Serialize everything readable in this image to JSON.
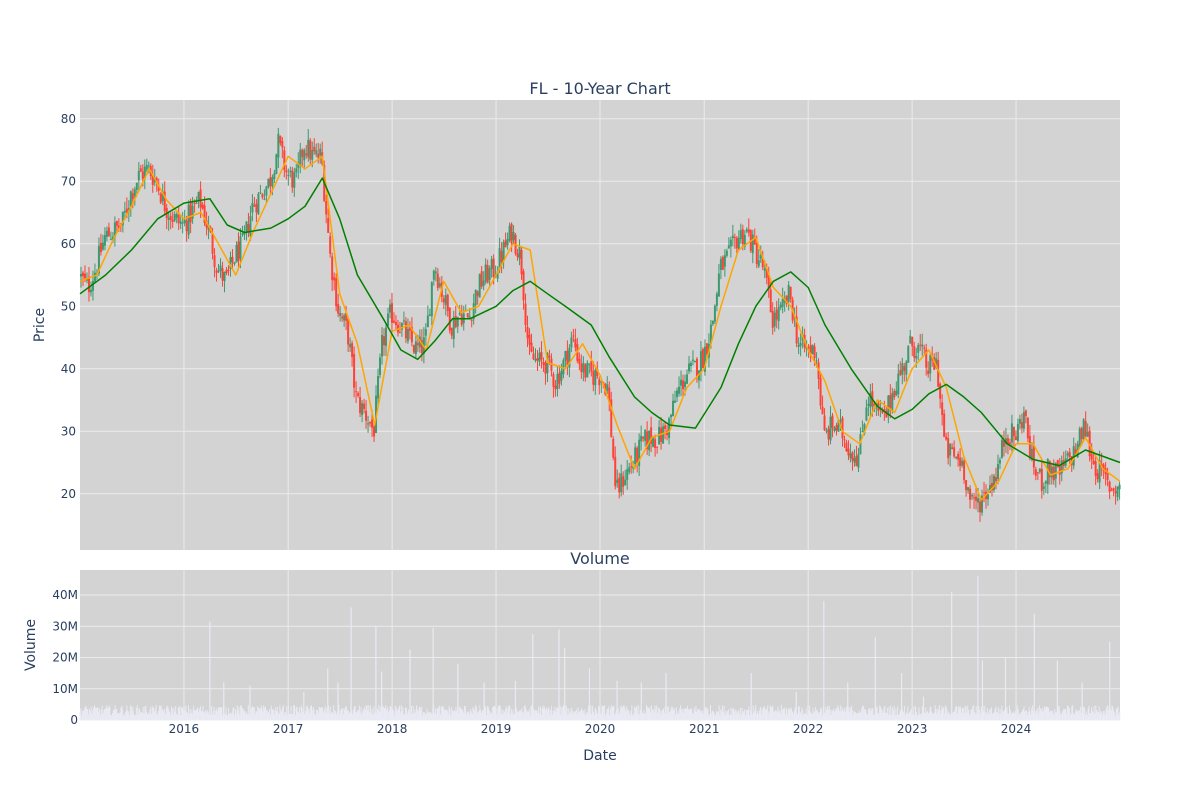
{
  "chart_data": [
    {
      "type": "candlestick",
      "title": "FL - 10-Year Chart",
      "ylabel": "Price",
      "x_range": [
        "2015-01-01",
        "2024-12-31"
      ],
      "ylim": [
        11,
        83
      ],
      "yticks": [
        20,
        30,
        40,
        50,
        60,
        70,
        80
      ],
      "grid": true,
      "legend": "none",
      "colors": {
        "plot_bg": "#d3d3d3",
        "grid": "#ebebeb",
        "up": "#3d9970",
        "down": "#ff4136",
        "ma_short": "#ffa500",
        "ma_long": "#008000",
        "text": "#2a3f5f"
      },
      "price_path": [
        [
          "2015-01-01",
          55
        ],
        [
          "2015-02-01",
          53
        ],
        [
          "2015-03-01",
          56
        ],
        [
          "2015-04-01",
          61
        ],
        [
          "2015-05-01",
          62
        ],
        [
          "2015-06-01",
          63
        ],
        [
          "2015-07-01",
          68
        ],
        [
          "2015-08-01",
          71
        ],
        [
          "2015-09-01",
          72
        ],
        [
          "2015-10-01",
          70
        ],
        [
          "2015-11-01",
          66
        ],
        [
          "2015-12-01",
          64
        ],
        [
          "2016-01-01",
          63
        ],
        [
          "2016-02-01",
          65
        ],
        [
          "2016-03-01",
          67
        ],
        [
          "2016-04-01",
          62
        ],
        [
          "2016-05-01",
          56
        ],
        [
          "2016-06-01",
          54
        ],
        [
          "2016-07-01",
          58
        ],
        [
          "2016-08-01",
          60
        ],
        [
          "2016-09-01",
          66
        ],
        [
          "2016-10-01",
          68
        ],
        [
          "2016-11-01",
          70
        ],
        [
          "2016-12-01",
          76
        ],
        [
          "2017-01-01",
          71
        ],
        [
          "2017-02-01",
          70
        ],
        [
          "2017-03-01",
          76
        ],
        [
          "2017-04-01",
          74
        ],
        [
          "2017-05-01",
          74
        ],
        [
          "2017-06-01",
          58
        ],
        [
          "2017-07-01",
          49
        ],
        [
          "2017-08-01",
          46
        ],
        [
          "2017-09-01",
          35
        ],
        [
          "2017-10-01",
          33
        ],
        [
          "2017-11-01",
          30
        ],
        [
          "2017-12-01",
          44
        ],
        [
          "2018-01-01",
          49
        ],
        [
          "2018-02-01",
          47
        ],
        [
          "2018-03-01",
          45
        ],
        [
          "2018-04-01",
          43
        ],
        [
          "2018-05-01",
          44
        ],
        [
          "2018-06-01",
          57
        ],
        [
          "2018-07-01",
          52
        ],
        [
          "2018-08-01",
          47
        ],
        [
          "2018-09-01",
          49
        ],
        [
          "2018-10-01",
          48
        ],
        [
          "2018-11-01",
          53
        ],
        [
          "2018-12-01",
          55
        ],
        [
          "2019-01-01",
          56
        ],
        [
          "2019-02-01",
          59
        ],
        [
          "2019-03-01",
          62
        ],
        [
          "2019-04-01",
          58
        ],
        [
          "2019-05-01",
          42
        ],
        [
          "2019-06-01",
          41
        ],
        [
          "2019-07-01",
          41
        ],
        [
          "2019-08-01",
          38
        ],
        [
          "2019-09-01",
          41
        ],
        [
          "2019-10-01",
          45
        ],
        [
          "2019-11-01",
          40
        ],
        [
          "2019-12-01",
          39
        ],
        [
          "2020-01-01",
          39
        ],
        [
          "2020-02-01",
          37
        ],
        [
          "2020-03-01",
          20
        ],
        [
          "2020-04-01",
          23
        ],
        [
          "2020-05-01",
          25
        ],
        [
          "2020-06-01",
          28
        ],
        [
          "2020-07-01",
          29
        ],
        [
          "2020-08-01",
          29
        ],
        [
          "2020-09-01",
          31
        ],
        [
          "2020-10-01",
          36
        ],
        [
          "2020-11-01",
          39
        ],
        [
          "2020-12-01",
          40
        ],
        [
          "2021-01-01",
          42
        ],
        [
          "2021-02-01",
          47
        ],
        [
          "2021-03-01",
          56
        ],
        [
          "2021-04-01",
          58
        ],
        [
          "2021-05-01",
          61
        ],
        [
          "2021-06-01",
          62
        ],
        [
          "2021-07-01",
          59
        ],
        [
          "2021-08-01",
          56
        ],
        [
          "2021-09-01",
          48
        ],
        [
          "2021-10-01",
          49
        ],
        [
          "2021-11-01",
          52
        ],
        [
          "2021-12-01",
          44
        ],
        [
          "2022-01-01",
          43
        ],
        [
          "2022-02-01",
          43
        ],
        [
          "2022-03-01",
          29
        ],
        [
          "2022-04-01",
          31
        ],
        [
          "2022-05-01",
          30
        ],
        [
          "2022-06-01",
          27
        ],
        [
          "2022-07-01",
          26
        ],
        [
          "2022-08-01",
          36
        ],
        [
          "2022-09-01",
          33
        ],
        [
          "2022-10-01",
          32
        ],
        [
          "2022-11-01",
          37
        ],
        [
          "2022-12-01",
          40
        ],
        [
          "2023-01-01",
          44
        ],
        [
          "2023-02-01",
          43
        ],
        [
          "2023-03-01",
          40
        ],
        [
          "2023-04-01",
          41
        ],
        [
          "2023-05-01",
          27
        ],
        [
          "2023-06-01",
          26
        ],
        [
          "2023-07-01",
          25
        ],
        [
          "2023-08-01",
          18
        ],
        [
          "2023-09-01",
          19
        ],
        [
          "2023-10-01",
          21
        ],
        [
          "2023-11-01",
          24
        ],
        [
          "2023-12-01",
          30
        ],
        [
          "2024-01-01",
          29
        ],
        [
          "2024-02-01",
          33
        ],
        [
          "2024-03-01",
          25
        ],
        [
          "2024-04-01",
          22
        ],
        [
          "2024-05-01",
          24
        ],
        [
          "2024-06-01",
          23
        ],
        [
          "2024-07-01",
          25
        ],
        [
          "2024-08-01",
          27
        ],
        [
          "2024-09-01",
          31
        ],
        [
          "2024-10-01",
          25
        ],
        [
          "2024-11-01",
          23
        ],
        [
          "2024-12-01",
          21
        ]
      ],
      "series": [
        {
          "color": "#ffa500",
          "points": [
            [
              "2015-01-01",
              54
            ],
            [
              "2015-03-01",
              55
            ],
            [
              "2015-05-01",
              61
            ],
            [
              "2015-07-01",
              66
            ],
            [
              "2015-09-01",
              72
            ],
            [
              "2015-11-01",
              67
            ],
            [
              "2016-01-01",
              64
            ],
            [
              "2016-03-01",
              65
            ],
            [
              "2016-05-01",
              60
            ],
            [
              "2016-07-01",
              55
            ],
            [
              "2016-09-01",
              62
            ],
            [
              "2016-11-01",
              68
            ],
            [
              "2017-01-01",
              74
            ],
            [
              "2017-03-01",
              72
            ],
            [
              "2017-05-01",
              74
            ],
            [
              "2017-07-01",
              52
            ],
            [
              "2017-09-01",
              44
            ],
            [
              "2017-11-01",
              31
            ],
            [
              "2018-01-01",
              46
            ],
            [
              "2018-03-01",
              47
            ],
            [
              "2018-05-01",
              43
            ],
            [
              "2018-07-01",
              54
            ],
            [
              "2018-09-01",
              49
            ],
            [
              "2018-11-01",
              50
            ],
            [
              "2019-01-01",
              55
            ],
            [
              "2019-03-01",
              60
            ],
            [
              "2019-05-01",
              59
            ],
            [
              "2019-07-01",
              41
            ],
            [
              "2019-09-01",
              40
            ],
            [
              "2019-11-01",
              44
            ],
            [
              "2020-01-01",
              39
            ],
            [
              "2020-03-01",
              31
            ],
            [
              "2020-05-01",
              24
            ],
            [
              "2020-07-01",
              29
            ],
            [
              "2020-09-01",
              30
            ],
            [
              "2020-11-01",
              37
            ],
            [
              "2021-01-01",
              40
            ],
            [
              "2021-03-01",
              50
            ],
            [
              "2021-05-01",
              59
            ],
            [
              "2021-07-01",
              61
            ],
            [
              "2021-09-01",
              53
            ],
            [
              "2021-11-01",
              50
            ],
            [
              "2022-01-01",
              43
            ],
            [
              "2022-03-01",
              38
            ],
            [
              "2022-05-01",
              30
            ],
            [
              "2022-07-01",
              28
            ],
            [
              "2022-09-01",
              35
            ],
            [
              "2022-11-01",
              33
            ],
            [
              "2023-01-01",
              40
            ],
            [
              "2023-03-01",
              43
            ],
            [
              "2023-05-01",
              37
            ],
            [
              "2023-07-01",
              26
            ],
            [
              "2023-09-01",
              19
            ],
            [
              "2023-11-01",
              22
            ],
            [
              "2024-01-01",
              28
            ],
            [
              "2024-03-01",
              28
            ],
            [
              "2024-05-01",
              23
            ],
            [
              "2024-07-01",
              24
            ],
            [
              "2024-09-01",
              29
            ],
            [
              "2024-11-01",
              24
            ],
            [
              "2024-12-31",
              22
            ]
          ]
        },
        {
          "color": "#008000",
          "points": [
            [
              "2015-01-01",
              52
            ],
            [
              "2015-04-01",
              55
            ],
            [
              "2015-07-01",
              59
            ],
            [
              "2015-10-01",
              64
            ],
            [
              "2016-01-01",
              66.5
            ],
            [
              "2016-04-01",
              67.2
            ],
            [
              "2016-06-01",
              63
            ],
            [
              "2016-08-01",
              61.8
            ],
            [
              "2016-11-01",
              62.5
            ],
            [
              "2017-01-01",
              64
            ],
            [
              "2017-03-01",
              66
            ],
            [
              "2017-05-01",
              70.5
            ],
            [
              "2017-07-01",
              64
            ],
            [
              "2017-09-01",
              55
            ],
            [
              "2017-12-01",
              48
            ],
            [
              "2018-02-01",
              43
            ],
            [
              "2018-04-01",
              41.5
            ],
            [
              "2018-06-01",
              44.5
            ],
            [
              "2018-08-01",
              48
            ],
            [
              "2018-10-01",
              48
            ],
            [
              "2019-01-01",
              50
            ],
            [
              "2019-03-01",
              52.5
            ],
            [
              "2019-05-01",
              54
            ],
            [
              "2019-07-01",
              52
            ],
            [
              "2019-09-01",
              50
            ],
            [
              "2019-12-01",
              47
            ],
            [
              "2020-02-01",
              42
            ],
            [
              "2020-05-01",
              35.5
            ],
            [
              "2020-07-01",
              33
            ],
            [
              "2020-09-01",
              31
            ],
            [
              "2020-12-01",
              30.5
            ],
            [
              "2021-03-01",
              37
            ],
            [
              "2021-05-01",
              44
            ],
            [
              "2021-07-01",
              50
            ],
            [
              "2021-09-01",
              54
            ],
            [
              "2021-11-01",
              55.5
            ],
            [
              "2022-01-01",
              53
            ],
            [
              "2022-03-01",
              47
            ],
            [
              "2022-06-01",
              40
            ],
            [
              "2022-09-01",
              34
            ],
            [
              "2022-11-01",
              32
            ],
            [
              "2023-01-01",
              33.5
            ],
            [
              "2023-03-01",
              36
            ],
            [
              "2023-05-01",
              37.5
            ],
            [
              "2023-07-01",
              35.5
            ],
            [
              "2023-09-01",
              33
            ],
            [
              "2023-12-01",
              28
            ],
            [
              "2024-03-01",
              25.5
            ],
            [
              "2024-06-01",
              24.5
            ],
            [
              "2024-09-01",
              27
            ],
            [
              "2024-12-31",
              25
            ]
          ]
        }
      ]
    },
    {
      "type": "bar",
      "title": "Volume",
      "xlabel": "Date",
      "ylabel": "Volume",
      "ylim": [
        0,
        48000000
      ],
      "yticks": [
        0,
        10000000,
        20000000,
        30000000,
        40000000
      ],
      "ytick_labels": [
        "0",
        "10M",
        "20M",
        "30M",
        "40M"
      ],
      "xtick_labels": [
        "2016",
        "2017",
        "2018",
        "2019",
        "2020",
        "2021",
        "2022",
        "2023",
        "2024"
      ],
      "x_range": [
        "2015-01-01",
        "2024-12-31"
      ],
      "grid": true,
      "colors": {
        "bar": "#eaeaf4",
        "plot_bg": "#d3d3d3"
      },
      "baseline_volume": 3000000,
      "spikes": [
        [
          "2016-04-01",
          31500000
        ],
        [
          "2016-05-20",
          12000000
        ],
        [
          "2016-08-20",
          11000000
        ],
        [
          "2017-02-25",
          9000000
        ],
        [
          "2017-05-20",
          16500000
        ],
        [
          "2017-06-25",
          12000000
        ],
        [
          "2017-08-10",
          36000000
        ],
        [
          "2017-11-05",
          30000000
        ],
        [
          "2017-11-25",
          15500000
        ],
        [
          "2018-03-05",
          22500000
        ],
        [
          "2018-05-25",
          29500000
        ],
        [
          "2018-08-20",
          18000000
        ],
        [
          "2018-11-20",
          12000000
        ],
        [
          "2019-03-10",
          12500000
        ],
        [
          "2019-05-10",
          27500000
        ],
        [
          "2019-08-10",
          29000000
        ],
        [
          "2019-08-30",
          23000000
        ],
        [
          "2019-11-25",
          16500000
        ],
        [
          "2020-03-01",
          12500000
        ],
        [
          "2020-05-25",
          12000000
        ],
        [
          "2020-08-20",
          15000000
        ],
        [
          "2021-06-15",
          15000000
        ],
        [
          "2021-11-20",
          9000000
        ],
        [
          "2022-02-25",
          38000000
        ],
        [
          "2022-05-20",
          12000000
        ],
        [
          "2022-08-25",
          26500000
        ],
        [
          "2022-11-25",
          15000000
        ],
        [
          "2023-02-10",
          7500000
        ],
        [
          "2023-05-20",
          41000000
        ],
        [
          "2023-08-20",
          46000000
        ],
        [
          "2023-09-05",
          19000000
        ],
        [
          "2023-11-25",
          20000000
        ],
        [
          "2024-03-05",
          34000000
        ],
        [
          "2024-05-25",
          19000000
        ],
        [
          "2024-08-20",
          12000000
        ],
        [
          "2024-11-25",
          25000000
        ]
      ]
    }
  ]
}
